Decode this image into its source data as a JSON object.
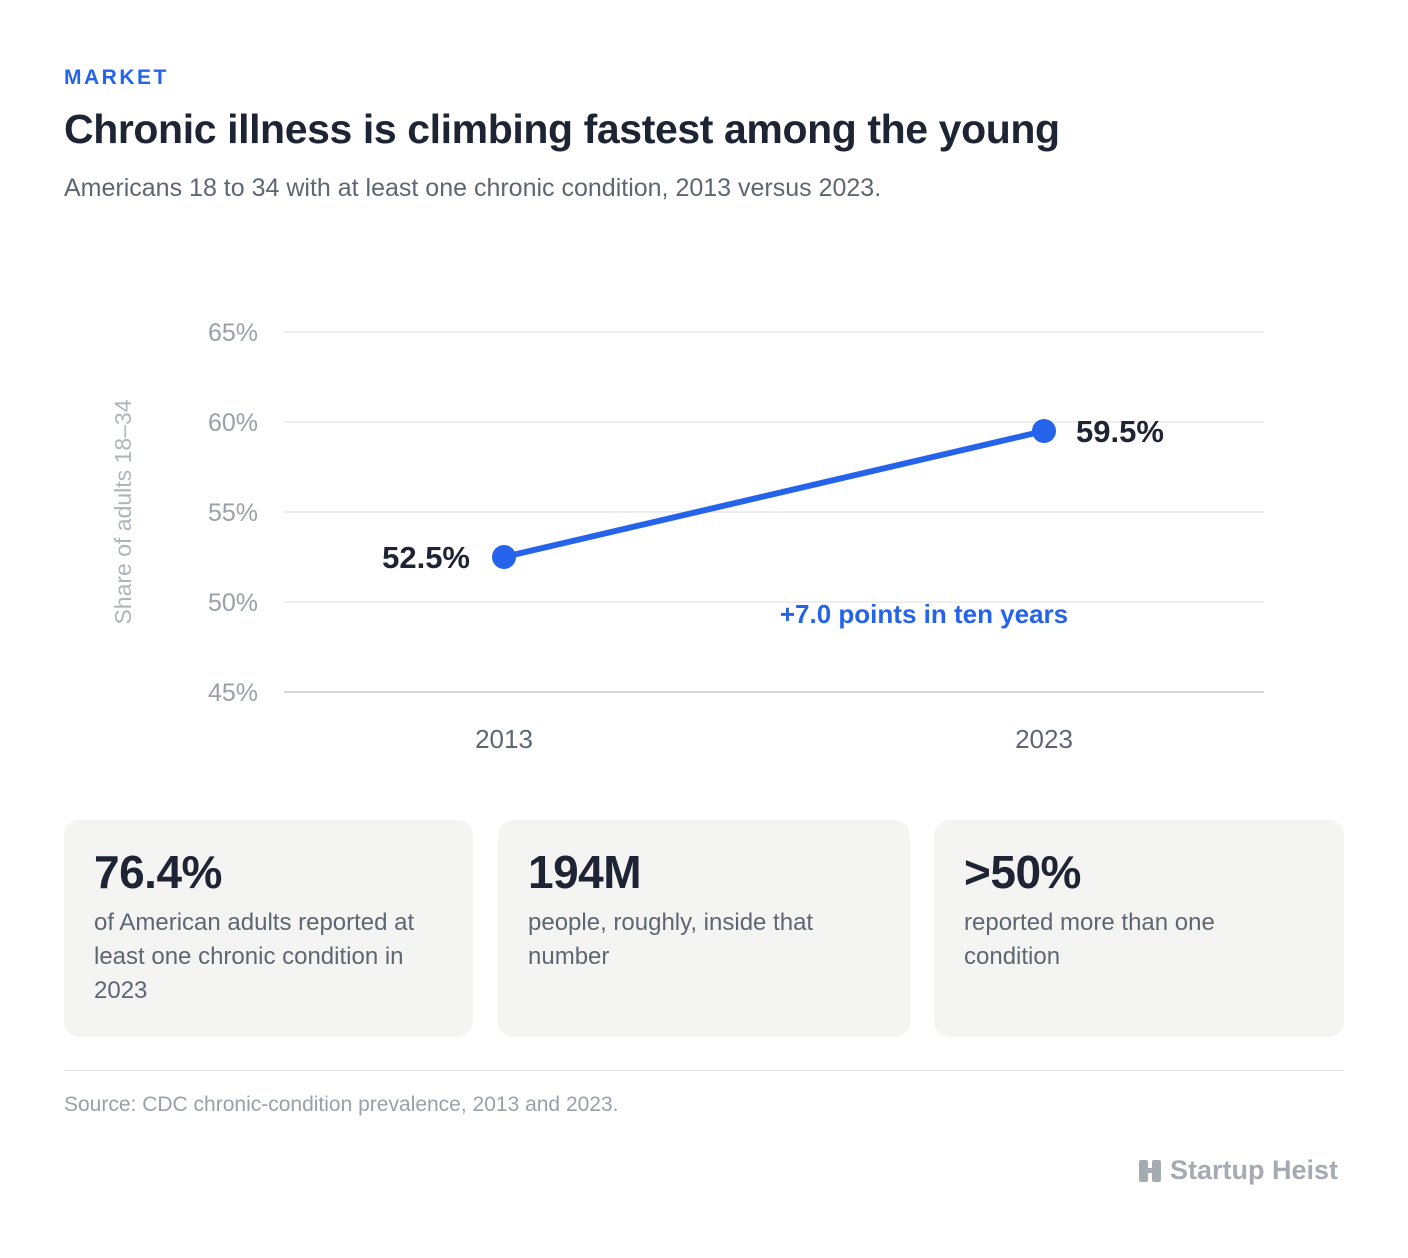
{
  "header": {
    "kicker": "MARKET",
    "title": "Chronic illness is climbing fastest among the young",
    "subtitle": "Americans 18 to 34 with at least one chronic condition, 2013 versus 2023."
  },
  "chart_data": {
    "type": "line",
    "x": [
      "2013",
      "2023"
    ],
    "series": [
      {
        "values": [
          52.5,
          59.5
        ],
        "labels": [
          "52.5%",
          "59.5%"
        ],
        "color": "#2563eb"
      }
    ],
    "ylabel": "Share of adults 18–34",
    "xlabel": "",
    "ylim": [
      45,
      65
    ],
    "yticks": [
      65,
      60,
      55,
      50,
      45
    ],
    "ytick_labels": [
      "65%",
      "60%",
      "55%",
      "50%",
      "45%"
    ],
    "annotation": "+7.0 points in ten years",
    "grid": true
  },
  "stats": [
    {
      "value": "76.4%",
      "desc": "of American adults reported at least one chronic condition in 2023"
    },
    {
      "value": "194M",
      "desc": "people, roughly, inside that number"
    },
    {
      "value": ">50%",
      "desc": "reported more than one condition"
    }
  ],
  "footer": {
    "source": "Source: CDC chronic-condition prevalence, 2013 and 2023.",
    "brand": "Startup Heist",
    "brand_icon": "building-icon"
  },
  "colors": {
    "accent": "#2563eb",
    "text": "#1e2433",
    "muted": "#5f6673",
    "card_bg": "#f4f4f3"
  }
}
